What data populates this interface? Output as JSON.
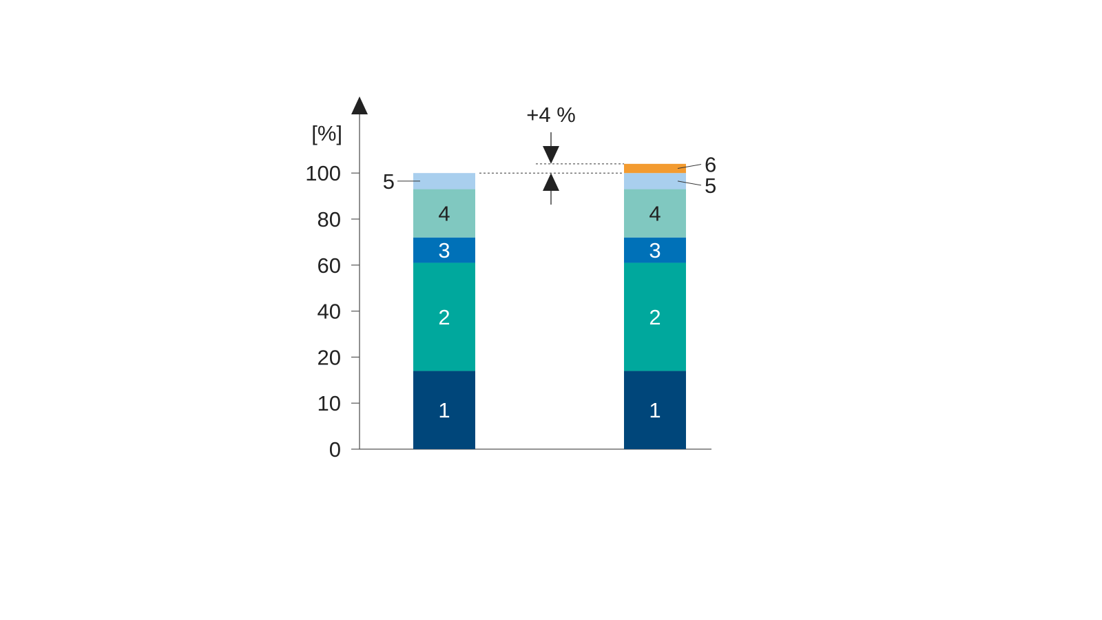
{
  "chart_data": {
    "type": "bar",
    "stacked": true,
    "ylabel": "[%]",
    "y_ticks": [
      0,
      10,
      20,
      40,
      60,
      80,
      100
    ],
    "grid": false,
    "legend": "none",
    "annotation": "+4 %",
    "bars": [
      {
        "segments": [
          {
            "label": "1",
            "value": 17,
            "color": "#00467a",
            "text_color": "#ffffff"
          },
          {
            "label": "2",
            "value": 44,
            "color": "#00a89d",
            "text_color": "#ffffff"
          },
          {
            "label": "3",
            "value": 11,
            "color": "#0071b8",
            "text_color": "#ffffff"
          },
          {
            "label": "4",
            "value": 21,
            "color": "#80c8c0",
            "text_color": "#222222"
          },
          {
            "label": "5",
            "value": 7,
            "color": "#a9cfee",
            "text_color": "#222222",
            "callout": "left"
          }
        ]
      },
      {
        "segments": [
          {
            "label": "1",
            "value": 17,
            "color": "#00467a",
            "text_color": "#ffffff"
          },
          {
            "label": "2",
            "value": 44,
            "color": "#00a89d",
            "text_color": "#ffffff"
          },
          {
            "label": "3",
            "value": 11,
            "color": "#0071b8",
            "text_color": "#ffffff"
          },
          {
            "label": "4",
            "value": 21,
            "color": "#80c8c0",
            "text_color": "#222222"
          },
          {
            "label": "5",
            "value": 7,
            "color": "#a9cfee",
            "text_color": "#222222",
            "callout": "right"
          },
          {
            "label": "6",
            "value": 4,
            "color": "#f39b30",
            "text_color": "#222222",
            "callout": "right"
          }
        ]
      }
    ]
  }
}
